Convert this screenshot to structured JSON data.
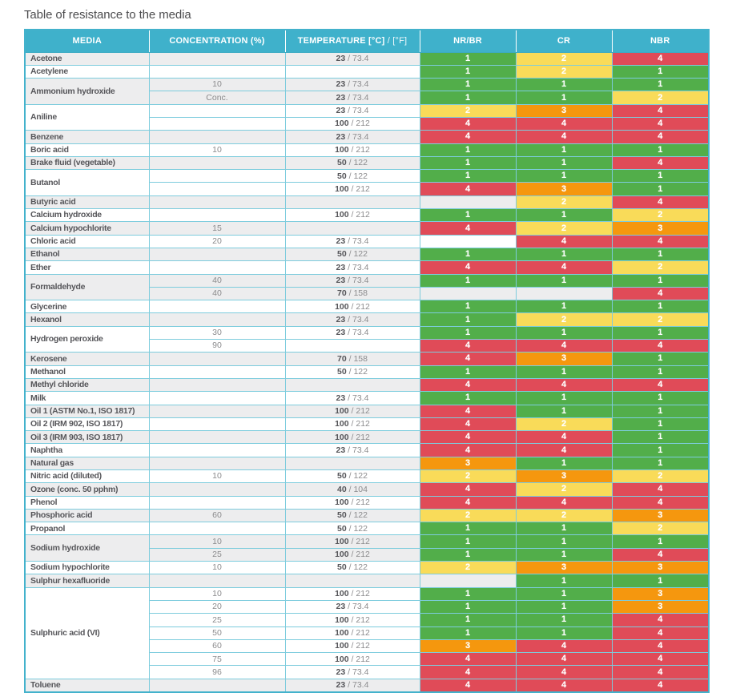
{
  "title": "Table of resistance to the media",
  "columns": {
    "media": "MEDIA",
    "concentration": "CONCENTRATION (%)",
    "temperature_bold": "TEMPERATURE [°C]",
    "temperature_light": " / [°F]",
    "nr_br": "NR/BR",
    "cr": "CR",
    "nbr": "NBR"
  },
  "colors": {
    "header_bg": "#3fb1cb",
    "border": "#7dccdd",
    "row_stripe": "#ededee",
    "row_plain": "#ffffff",
    "ratings": {
      "1": "#52ae4a",
      "2": "#f9db59",
      "3": "#f5970e",
      "4": "#e04b58"
    }
  },
  "table": {
    "rating_columns": [
      "nr-br",
      "cr",
      "nbr"
    ],
    "groups": [
      {
        "media": "Acetone",
        "rows": [
          {
            "conc": "",
            "tc": "23",
            "tf": "73.4",
            "r": [
              "1",
              "2",
              "4"
            ]
          }
        ]
      },
      {
        "media": "Acetylene",
        "rows": [
          {
            "conc": "",
            "tc": "",
            "tf": "",
            "r": [
              "1",
              "2",
              "1"
            ]
          }
        ]
      },
      {
        "media": "Ammonium hydroxide",
        "rows": [
          {
            "conc": "10",
            "tc": "23",
            "tf": "73.4",
            "r": [
              "1",
              "1",
              "1"
            ]
          },
          {
            "conc": "Conc.",
            "tc": "23",
            "tf": "73.4",
            "r": [
              "1",
              "1",
              "2"
            ]
          }
        ]
      },
      {
        "media": "Aniline",
        "rows": [
          {
            "conc": "",
            "tc": "23",
            "tf": "73.4",
            "r": [
              "2",
              "3",
              "4"
            ]
          },
          {
            "conc": "",
            "tc": "100",
            "tf": "212",
            "r": [
              "4",
              "4",
              "4"
            ]
          }
        ]
      },
      {
        "media": "Benzene",
        "rows": [
          {
            "conc": "",
            "tc": "23",
            "tf": "73.4",
            "r": [
              "4",
              "4",
              "4"
            ]
          }
        ]
      },
      {
        "media": "Boric acid",
        "rows": [
          {
            "conc": "10",
            "tc": "100",
            "tf": "212",
            "r": [
              "1",
              "1",
              "1"
            ]
          }
        ]
      },
      {
        "media": "Brake fluid (vegetable)",
        "rows": [
          {
            "conc": "",
            "tc": "50",
            "tf": "122",
            "r": [
              "1",
              "1",
              "4"
            ]
          }
        ]
      },
      {
        "media": "Butanol",
        "rows": [
          {
            "conc": "",
            "tc": "50",
            "tf": "122",
            "r": [
              "1",
              "1",
              "1"
            ]
          },
          {
            "conc": "",
            "tc": "100",
            "tf": "212",
            "r": [
              "4",
              "3",
              "1"
            ]
          }
        ]
      },
      {
        "media": "Butyric acid",
        "rows": [
          {
            "conc": "",
            "tc": "",
            "tf": "",
            "r": [
              "",
              "2",
              "4"
            ]
          }
        ]
      },
      {
        "media": "Calcium hydroxide",
        "rows": [
          {
            "conc": "",
            "tc": "100",
            "tf": "212",
            "r": [
              "1",
              "1",
              "2"
            ]
          }
        ]
      },
      {
        "media": "Calcium hypochlorite",
        "rows": [
          {
            "conc": "15",
            "tc": "",
            "tf": "",
            "r": [
              "4",
              "2",
              "3"
            ]
          }
        ]
      },
      {
        "media": "Chloric acid",
        "rows": [
          {
            "conc": "20",
            "tc": "23",
            "tf": "73.4",
            "r": [
              "",
              "4",
              "4"
            ]
          }
        ]
      },
      {
        "media": "Ethanol",
        "rows": [
          {
            "conc": "",
            "tc": "50",
            "tf": "122",
            "r": [
              "1",
              "1",
              "1"
            ]
          }
        ]
      },
      {
        "media": "Ether",
        "rows": [
          {
            "conc": "",
            "tc": "23",
            "tf": "73.4",
            "r": [
              "4",
              "4",
              "2"
            ]
          }
        ]
      },
      {
        "media": "Formaldehyde",
        "rows": [
          {
            "conc": "40",
            "tc": "23",
            "tf": "73.4",
            "r": [
              "1",
              "1",
              "1"
            ]
          },
          {
            "conc": "40",
            "tc": "70",
            "tf": "158",
            "r": [
              "",
              "",
              "4"
            ]
          }
        ]
      },
      {
        "media": "Glycerine",
        "rows": [
          {
            "conc": "",
            "tc": "100",
            "tf": "212",
            "r": [
              "1",
              "1",
              "1"
            ]
          }
        ]
      },
      {
        "media": "Hexanol",
        "rows": [
          {
            "conc": "",
            "tc": "23",
            "tf": "73.4",
            "r": [
              "1",
              "2",
              "2"
            ]
          }
        ]
      },
      {
        "media": "Hydrogen peroxide",
        "rows": [
          {
            "conc": "30",
            "tc": "23",
            "tf": "73.4",
            "r": [
              "1",
              "1",
              "1"
            ]
          },
          {
            "conc": "90",
            "tc": "",
            "tf": "",
            "r": [
              "4",
              "4",
              "4"
            ]
          }
        ]
      },
      {
        "media": "Kerosene",
        "rows": [
          {
            "conc": "",
            "tc": "70",
            "tf": "158",
            "r": [
              "4",
              "3",
              "1"
            ]
          }
        ]
      },
      {
        "media": "Methanol",
        "rows": [
          {
            "conc": "",
            "tc": "50",
            "tf": "122",
            "r": [
              "1",
              "1",
              "1"
            ]
          }
        ]
      },
      {
        "media": "Methyl chloride",
        "rows": [
          {
            "conc": "",
            "tc": "",
            "tf": "",
            "r": [
              "4",
              "4",
              "4"
            ]
          }
        ]
      },
      {
        "media": "Milk",
        "rows": [
          {
            "conc": "",
            "tc": "23",
            "tf": "73.4",
            "r": [
              "1",
              "1",
              "1"
            ]
          }
        ]
      },
      {
        "media": "Oil 1 (ASTM No.1, ISO 1817)",
        "rows": [
          {
            "conc": "",
            "tc": "100",
            "tf": "212",
            "r": [
              "4",
              "1",
              "1"
            ]
          }
        ]
      },
      {
        "media": "Oil 2 (IRM 902, ISO 1817)",
        "rows": [
          {
            "conc": "",
            "tc": "100",
            "tf": "212",
            "r": [
              "4",
              "2",
              "1"
            ]
          }
        ]
      },
      {
        "media": "Oil 3 (IRM 903, ISO 1817)",
        "rows": [
          {
            "conc": "",
            "tc": "100",
            "tf": "212",
            "r": [
              "4",
              "4",
              "1"
            ]
          }
        ]
      },
      {
        "media": "Naphtha",
        "rows": [
          {
            "conc": "",
            "tc": "23",
            "tf": "73.4",
            "r": [
              "4",
              "4",
              "1"
            ]
          }
        ]
      },
      {
        "media": "Natural gas",
        "rows": [
          {
            "conc": "",
            "tc": "",
            "tf": "",
            "r": [
              "3",
              "1",
              "1"
            ]
          }
        ]
      },
      {
        "media": "Nitric acid (diluted)",
        "rows": [
          {
            "conc": "10",
            "tc": "50",
            "tf": "122",
            "r": [
              "2",
              "3",
              "2"
            ]
          }
        ]
      },
      {
        "media": "Ozone (conc. 50 pphm)",
        "rows": [
          {
            "conc": "",
            "tc": "40",
            "tf": "104",
            "r": [
              "4",
              "2",
              "4"
            ]
          }
        ]
      },
      {
        "media": "Phenol",
        "rows": [
          {
            "conc": "",
            "tc": "100",
            "tf": "212",
            "r": [
              "4",
              "4",
              "4"
            ]
          }
        ]
      },
      {
        "media": "Phosphoric acid",
        "rows": [
          {
            "conc": "60",
            "tc": "50",
            "tf": "122",
            "r": [
              "2",
              "2",
              "3"
            ]
          }
        ]
      },
      {
        "media": "Propanol",
        "rows": [
          {
            "conc": "",
            "tc": "50",
            "tf": "122",
            "r": [
              "1",
              "1",
              "2"
            ]
          }
        ]
      },
      {
        "media": "Sodium hydroxide",
        "rows": [
          {
            "conc": "10",
            "tc": "100",
            "tf": "212",
            "r": [
              "1",
              "1",
              "1"
            ]
          },
          {
            "conc": "25",
            "tc": "100",
            "tf": "212",
            "r": [
              "1",
              "1",
              "4"
            ]
          }
        ]
      },
      {
        "media": "Sodium hypochlorite",
        "rows": [
          {
            "conc": "10",
            "tc": "50",
            "tf": "122",
            "r": [
              "2",
              "3",
              "3"
            ]
          }
        ]
      },
      {
        "media": "Sulphur hexafluoride",
        "rows": [
          {
            "conc": "",
            "tc": "",
            "tf": "",
            "r": [
              "",
              "1",
              "1"
            ]
          }
        ]
      },
      {
        "media": "Sulphuric acid (VI)",
        "rows": [
          {
            "conc": "10",
            "tc": "100",
            "tf": "212",
            "r": [
              "1",
              "1",
              "3"
            ]
          },
          {
            "conc": "20",
            "tc": "23",
            "tf": "73.4",
            "r": [
              "1",
              "1",
              "3"
            ]
          },
          {
            "conc": "25",
            "tc": "100",
            "tf": "212",
            "r": [
              "1",
              "1",
              "4"
            ]
          },
          {
            "conc": "50",
            "tc": "100",
            "tf": "212",
            "r": [
              "1",
              "1",
              "4"
            ]
          },
          {
            "conc": "60",
            "tc": "100",
            "tf": "212",
            "r": [
              "3",
              "4",
              "4"
            ]
          },
          {
            "conc": "75",
            "tc": "100",
            "tf": "212",
            "r": [
              "4",
              "4",
              "4"
            ]
          },
          {
            "conc": "96",
            "tc": "23",
            "tf": "73.4",
            "r": [
              "4",
              "4",
              "4"
            ]
          }
        ]
      },
      {
        "media": "Toluene",
        "rows": [
          {
            "conc": "",
            "tc": "23",
            "tf": "73.4",
            "r": [
              "4",
              "4",
              "4"
            ]
          }
        ]
      }
    ]
  }
}
